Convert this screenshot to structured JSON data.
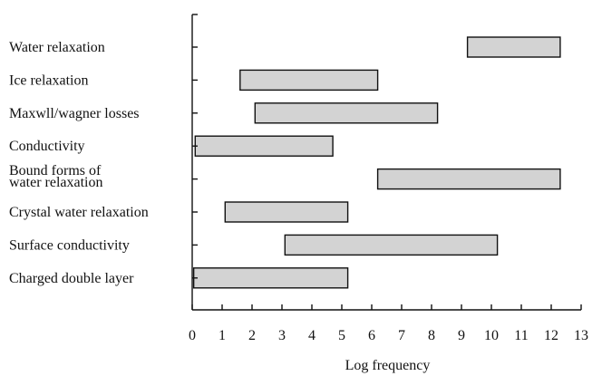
{
  "chart_data": {
    "type": "bar",
    "orientation": "horizontal-range",
    "categories": [
      [
        "Water relaxation"
      ],
      [
        "Ice relaxation"
      ],
      [
        "Maxwll/wagner losses"
      ],
      [
        "Conductivity"
      ],
      [
        "Bound forms of",
        "water relaxation"
      ],
      [
        "Crystal water relaxation"
      ],
      [
        "Surface conductivity"
      ],
      [
        "Charged double layer"
      ]
    ],
    "ranges": [
      [
        9.2,
        12.3
      ],
      [
        1.6,
        6.2
      ],
      [
        2.1,
        8.2
      ],
      [
        0.1,
        4.7
      ],
      [
        6.2,
        12.3
      ],
      [
        1.1,
        5.2
      ],
      [
        3.1,
        10.2
      ],
      [
        0.05,
        5.2
      ]
    ],
    "xlabel": "Log frequency",
    "ylabel": "",
    "xlim": [
      0,
      13
    ],
    "xticks": [
      "0",
      "1",
      "2",
      "3",
      "4",
      "5",
      "6",
      "7",
      "8",
      "9",
      "10",
      "11",
      "12",
      "13"
    ],
    "grid": false,
    "colors": {
      "bar_fill": "#d3d3d3",
      "bar_stroke": "#111111"
    }
  }
}
